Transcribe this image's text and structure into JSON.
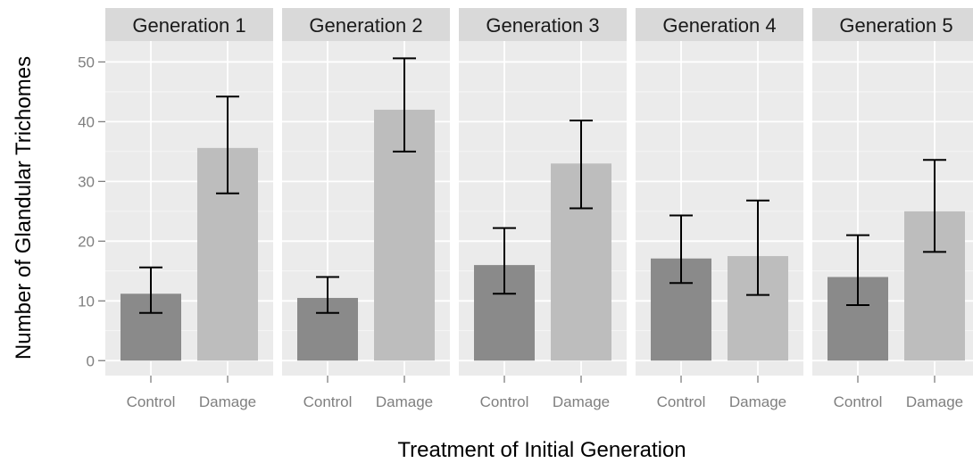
{
  "chart_data": {
    "type": "bar",
    "facet_by": "generation",
    "facets": [
      "Generation 1",
      "Generation 2",
      "Generation 3",
      "Generation 4",
      "Generation 5"
    ],
    "categories": [
      "Control",
      "Damage"
    ],
    "series": [
      {
        "name": "Generation 1",
        "values": [
          11.2,
          35.6
        ],
        "error_low": [
          8.0,
          28.0
        ],
        "error_high": [
          15.6,
          44.2
        ]
      },
      {
        "name": "Generation 2",
        "values": [
          10.5,
          42.0
        ],
        "error_low": [
          8.0,
          35.0
        ],
        "error_high": [
          14.0,
          50.6
        ]
      },
      {
        "name": "Generation 3",
        "values": [
          16.0,
          33.0
        ],
        "error_low": [
          11.2,
          25.5
        ],
        "error_high": [
          22.2,
          40.2
        ]
      },
      {
        "name": "Generation 4",
        "values": [
          17.1,
          17.5
        ],
        "error_low": [
          13.0,
          11.0
        ],
        "error_high": [
          24.3,
          26.8
        ]
      },
      {
        "name": "Generation 5",
        "values": [
          14.0,
          25.0
        ],
        "error_low": [
          9.3,
          18.2
        ],
        "error_high": [
          21.0,
          33.6
        ]
      }
    ],
    "xlabel": "Treatment of Initial Generation",
    "ylabel": "Number of Glandular Trichomes",
    "ylim": [
      -2.5,
      53.5
    ],
    "yticks": [
      0,
      10,
      20,
      30,
      40,
      50
    ],
    "grid": true,
    "legend": "none",
    "colors": {
      "Control": "#8a8a8a",
      "Damage": "#bdbdbd",
      "panel_bg": "#ebebeb",
      "strip_bg": "#d9d9d9",
      "grid": "#ffffff",
      "error_bar": "#000000"
    }
  }
}
